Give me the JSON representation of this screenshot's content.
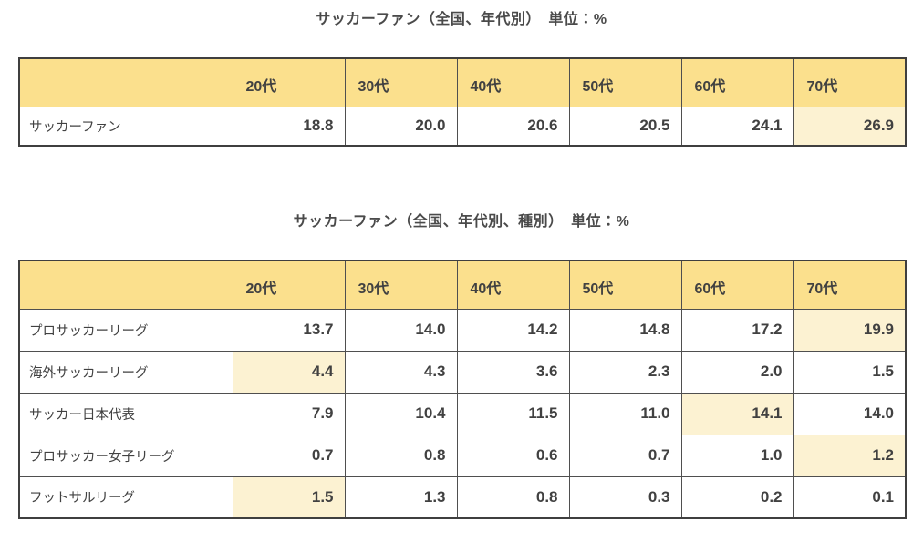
{
  "colors": {
    "header_bg": "#fbe08d",
    "highlight_bg": "#fcf2d2",
    "cell_bg": "#ffffff",
    "border": "#4f4f4f",
    "outer_border": "#3f3f3f",
    "text": "#414141"
  },
  "tables": [
    {
      "title": "サッカーファン（全国、年代別）　単位：%",
      "corner_label": "",
      "columns": [
        "20代",
        "30代",
        "40代",
        "50代",
        "60代",
        "70代"
      ],
      "rows": [
        {
          "label": "サッカーファン",
          "values": [
            "18.8",
            "20.0",
            "20.6",
            "20.5",
            "24.1",
            "26.9"
          ],
          "highlight": [
            5
          ]
        }
      ]
    },
    {
      "title": "サッカーファン（全国、年代別、種別）　単位：%",
      "corner_label": "",
      "columns": [
        "20代",
        "30代",
        "40代",
        "50代",
        "60代",
        "70代"
      ],
      "rows": [
        {
          "label": "プロサッカーリーグ",
          "values": [
            "13.7",
            "14.0",
            "14.2",
            "14.8",
            "17.2",
            "19.9"
          ],
          "highlight": [
            5
          ]
        },
        {
          "label": "海外サッカーリーグ",
          "values": [
            "4.4",
            "4.3",
            "3.6",
            "2.3",
            "2.0",
            "1.5"
          ],
          "highlight": [
            0
          ]
        },
        {
          "label": "サッカー日本代表",
          "values": [
            "7.9",
            "10.4",
            "11.5",
            "11.0",
            "14.1",
            "14.0"
          ],
          "highlight": [
            4
          ]
        },
        {
          "label": "プロサッカー女子リーグ",
          "values": [
            "0.7",
            "0.8",
            "0.6",
            "0.7",
            "1.0",
            "1.2"
          ],
          "highlight": [
            5
          ]
        },
        {
          "label": "フットサルリーグ",
          "values": [
            "1.5",
            "1.3",
            "0.8",
            "0.3",
            "0.2",
            "0.1"
          ],
          "highlight": [
            0
          ]
        }
      ]
    }
  ],
  "chart_data": [
    {
      "type": "table",
      "title": "サッカーファン（全国、年代別）　単位：%",
      "categories": [
        "20代",
        "30代",
        "40代",
        "50代",
        "60代",
        "70代"
      ],
      "series": [
        {
          "name": "サッカーファン",
          "values": [
            18.8,
            20.0,
            20.6,
            20.5,
            24.1,
            26.9
          ]
        }
      ],
      "layout_hints": {
        "highlighted_max_per_row": true,
        "unit": "%"
      }
    },
    {
      "type": "table",
      "title": "サッカーファン（全国、年代別、種別）　単位：%",
      "categories": [
        "20代",
        "30代",
        "40代",
        "50代",
        "60代",
        "70代"
      ],
      "series": [
        {
          "name": "プロサッカーリーグ",
          "values": [
            13.7,
            14.0,
            14.2,
            14.8,
            17.2,
            19.9
          ]
        },
        {
          "name": "海外サッカーリーグ",
          "values": [
            4.4,
            4.3,
            3.6,
            2.3,
            2.0,
            1.5
          ]
        },
        {
          "name": "サッカー日本代表",
          "values": [
            7.9,
            10.4,
            11.5,
            11.0,
            14.1,
            14.0
          ]
        },
        {
          "name": "プロサッカー女子リーグ",
          "values": [
            0.7,
            0.8,
            0.6,
            0.7,
            1.0,
            1.2
          ]
        },
        {
          "name": "フットサルリーグ",
          "values": [
            1.5,
            1.3,
            0.8,
            0.3,
            0.2,
            0.1
          ]
        }
      ],
      "layout_hints": {
        "highlighted_max_per_row": true,
        "unit": "%"
      }
    }
  ]
}
